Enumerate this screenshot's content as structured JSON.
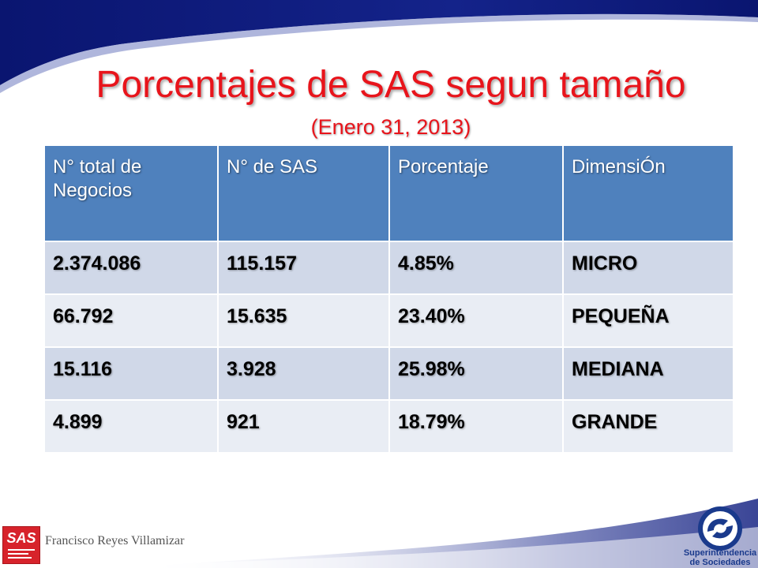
{
  "slide": {
    "title": "Porcentajes de SAS segun tamaño",
    "subtitle": "(Enero 31, 2013)",
    "colors": {
      "title_red": "#e8141b",
      "header_blue": "#4f81bd",
      "row_band_dark": "#d0d8e8",
      "row_band_light": "#e9edf4",
      "swoosh_navy": "#0f1c78"
    }
  },
  "table": {
    "headers": [
      "N° total de Negocios",
      "N° de SAS",
      "Porcentaje",
      "DimensiÓn"
    ],
    "rows": [
      [
        "2.374.086",
        "115.157",
        "4.85%",
        "MICRO"
      ],
      [
        "66.792",
        "15.635",
        "23.40%",
        "PEQUEÑA"
      ],
      [
        "15.116",
        "3.928",
        "25.98%",
        "MEDIANA"
      ],
      [
        "4.899",
        "921",
        "18.79%",
        "GRANDE"
      ]
    ]
  },
  "footer": {
    "author": "Francisco Reyes Villamizar",
    "left_logo": {
      "icon": "sas-logo-icon",
      "text": "SAS"
    },
    "right_logo": {
      "icon": "superintendencia-emblem-icon",
      "name_line1": "Superintendencia",
      "name_line2": "de Sociedades"
    }
  }
}
